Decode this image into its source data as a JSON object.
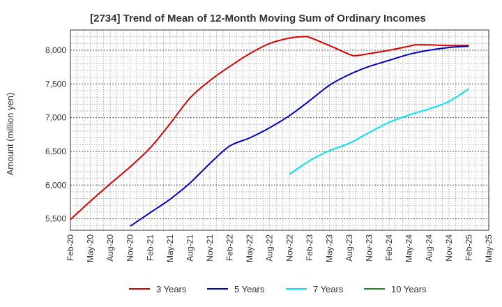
{
  "chart_data": {
    "type": "line",
    "title": "[2734]  Trend of Mean of 12-Month Moving Sum of Ordinary Incomes",
    "ylabel": "Amount (million yen)",
    "xlabel": "",
    "ylim": [
      5330,
      8300
    ],
    "yticks": [
      5500,
      6000,
      6500,
      7000,
      7500,
      8000
    ],
    "ytick_labels": [
      "5,500",
      "6,000",
      "6,500",
      "7,000",
      "7,500",
      "8,000"
    ],
    "x_start": "2020-02",
    "x_end": "2025-05",
    "xtick_labels": [
      "Feb-20",
      "May-20",
      "Aug-20",
      "Nov-20",
      "Feb-21",
      "May-21",
      "Aug-21",
      "Nov-21",
      "Feb-22",
      "May-22",
      "Aug-22",
      "Nov-22",
      "Feb-23",
      "May-23",
      "Aug-23",
      "Nov-23",
      "Feb-24",
      "May-24",
      "Aug-24",
      "Nov-24",
      "Feb-25",
      "May-25"
    ],
    "grid": true,
    "legend_position": "bottom",
    "series": [
      {
        "name": "3 Years",
        "color": "#dd0000",
        "x": [
          "2020-02",
          "2020-05",
          "2020-08",
          "2020-11",
          "2021-02",
          "2021-05",
          "2021-08",
          "2021-11",
          "2022-02",
          "2022-05",
          "2022-08",
          "2022-11",
          "2023-01",
          "2023-02",
          "2023-05",
          "2023-08",
          "2023-09",
          "2023-11",
          "2024-02",
          "2024-05",
          "2024-06",
          "2024-08",
          "2024-11",
          "2025-02"
        ],
        "values": [
          5490,
          5760,
          6020,
          6270,
          6550,
          6910,
          7290,
          7550,
          7760,
          7950,
          8100,
          8180,
          8200,
          8190,
          8070,
          7940,
          7920,
          7950,
          8000,
          8060,
          8080,
          8080,
          8070,
          8070
        ]
      },
      {
        "name": "5 Years",
        "color": "#0000cc",
        "x": [
          "2020-11",
          "2021-02",
          "2021-05",
          "2021-08",
          "2021-11",
          "2022-02",
          "2022-05",
          "2022-08",
          "2022-11",
          "2023-02",
          "2023-05",
          "2023-08",
          "2023-11",
          "2024-02",
          "2024-05",
          "2024-08",
          "2024-11",
          "2025-02"
        ],
        "values": [
          5390,
          5590,
          5790,
          6030,
          6320,
          6580,
          6700,
          6850,
          7030,
          7250,
          7480,
          7640,
          7760,
          7850,
          7940,
          8000,
          8040,
          8060
        ]
      },
      {
        "name": "7 Years",
        "color": "#00e5ee",
        "x": [
          "2022-11",
          "2023-02",
          "2023-05",
          "2023-08",
          "2023-11",
          "2024-02",
          "2024-05",
          "2024-08",
          "2024-11",
          "2025-02"
        ],
        "values": [
          6160,
          6360,
          6510,
          6620,
          6780,
          6930,
          7040,
          7130,
          7240,
          7430
        ]
      },
      {
        "name": "10 Years",
        "color": "#228b22",
        "x": [],
        "values": []
      }
    ]
  }
}
